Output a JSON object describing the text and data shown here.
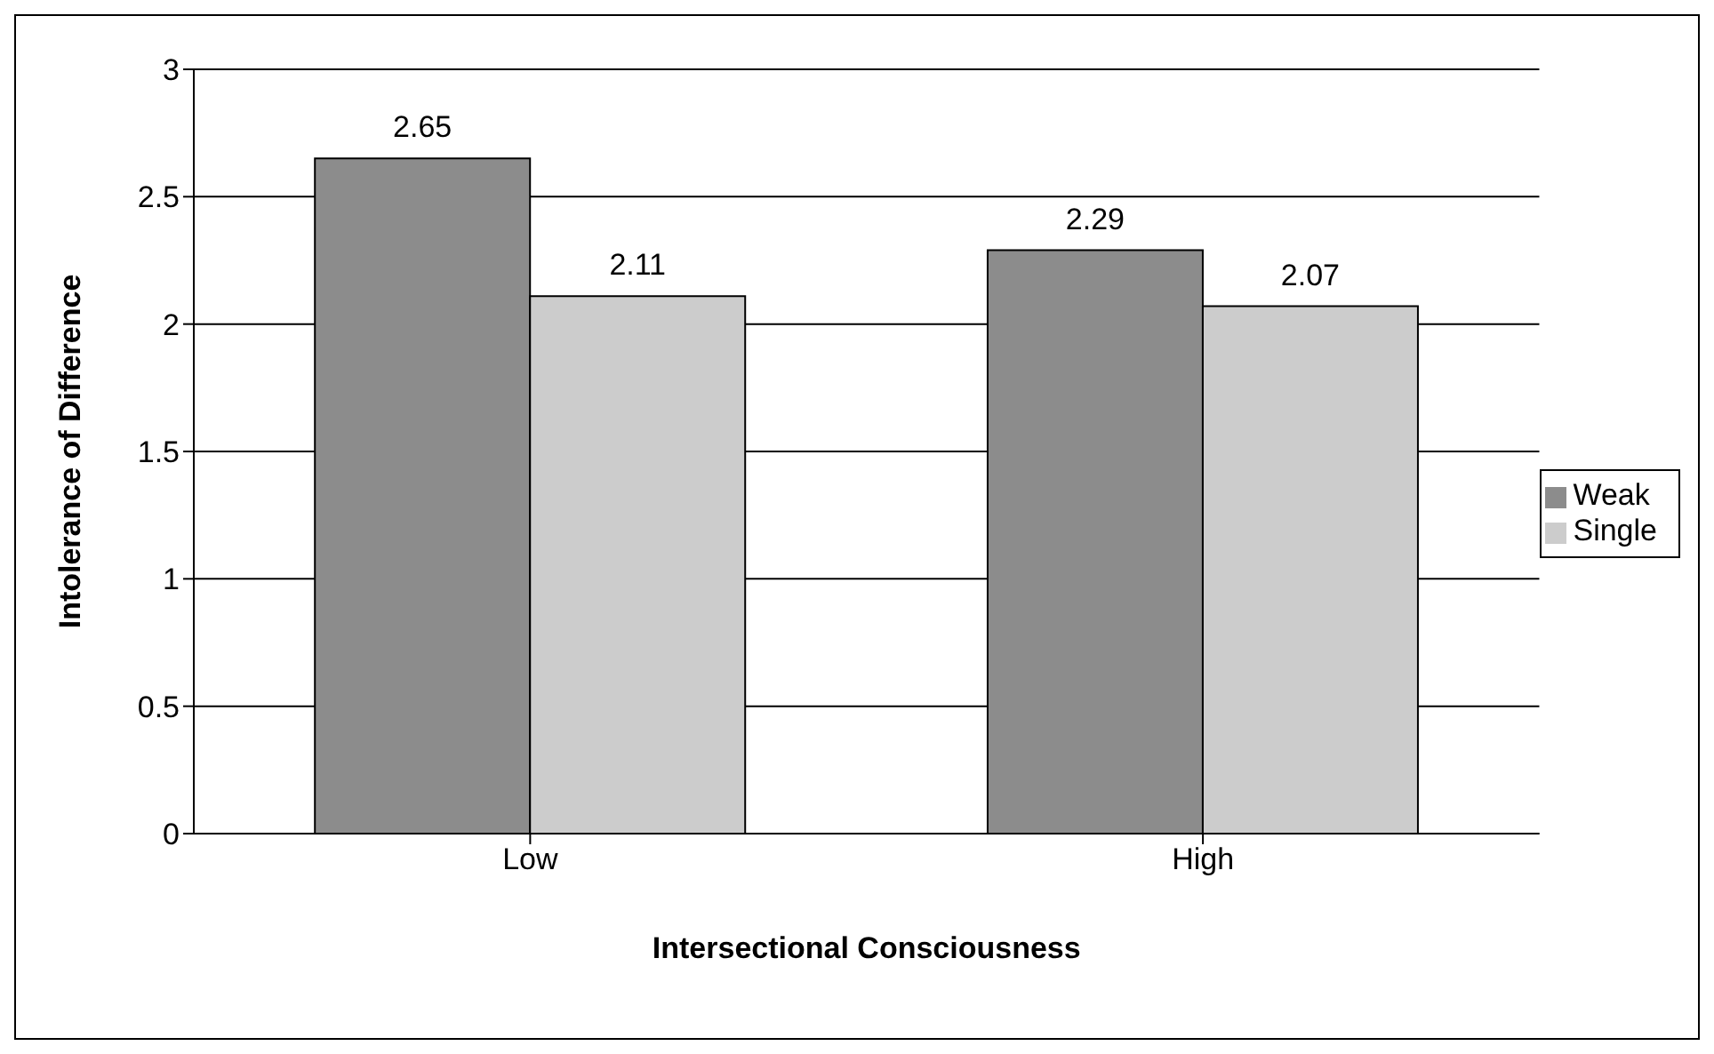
{
  "chart_data": {
    "type": "bar",
    "xlabel": "Intersectional Consciousness",
    "ylabel": "Intolerance of Difference",
    "categories": [
      "Low",
      "High"
    ],
    "series": [
      {
        "name": "Weak",
        "color": "#8c8c8c",
        "values": [
          2.65,
          2.29
        ]
      },
      {
        "name": "Single",
        "color": "#cccccc",
        "values": [
          2.11,
          2.07
        ]
      }
    ],
    "ylim": [
      0,
      3
    ],
    "yticks": [
      0,
      0.5,
      1,
      1.5,
      2,
      2.5,
      3
    ],
    "grid": "y",
    "legend": "right",
    "data_labels": true
  }
}
